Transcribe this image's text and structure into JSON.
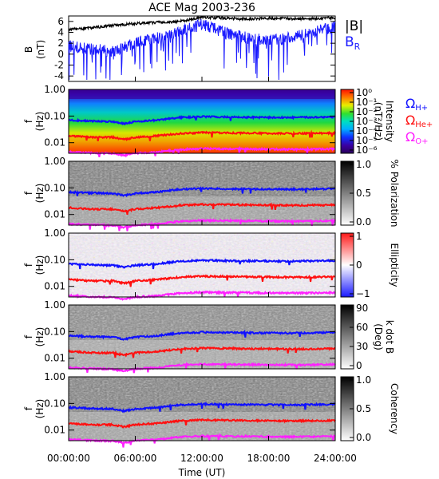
{
  "title": "ACE Mag 2003-236",
  "x_ticks": [
    "00:00:00",
    "06:00:00",
    "12:00:00",
    "18:00:00",
    "24:00:00"
  ],
  "x_label": "Time (UT)",
  "colors": {
    "h_plus": "#1010ff",
    "he_plus": "#ff1010",
    "o_plus": "#ff20ff",
    "br": "#1a1aff",
    "b_total": "#000000"
  },
  "legend": {
    "b_total": "|B|",
    "br": "B",
    "br_sub": "R",
    "h_plus": "Ω",
    "h_plus_sub": "H+",
    "he_plus": "Ω",
    "he_plus_sub": "He+",
    "o_plus": "Ω",
    "o_plus_sub": "O+"
  },
  "panel_b": {
    "ylabel_1": "B",
    "ylabel_2": "(nT)",
    "y_ticks": [
      "6",
      "4",
      "2",
      "0",
      "-2",
      "-4"
    ]
  },
  "spec_y_ticks": [
    "1.00",
    "0.10",
    "0.01"
  ],
  "spec_ylabel_1": "f",
  "spec_ylabel_2": "(Hz)",
  "colorbars": [
    {
      "label_1": "Intensity",
      "label_2": "(nT²/Hz)",
      "ticks": [
        "10⁰",
        "10⁻¹",
        "10⁻²",
        "10⁻³",
        "10⁻⁴",
        "10⁻⁵",
        "10⁻⁶"
      ]
    },
    {
      "label_1": "% Polarization",
      "label_2": "",
      "ticks": [
        "1.0",
        "0.5",
        "0.0"
      ]
    },
    {
      "label_1": "Ellipticity",
      "label_2": "",
      "ticks": [
        "1",
        "0",
        "−1"
      ]
    },
    {
      "label_1": "k dot B",
      "label_2": "(Deg)",
      "ticks": [
        "90",
        "60",
        "30",
        "0"
      ]
    },
    {
      "label_1": "Coherency",
      "label_2": "",
      "ticks": [
        "1.0",
        "0.5",
        "0.0"
      ]
    }
  ],
  "chart_data": [
    {
      "type": "line",
      "x_unit": "hours UT",
      "xlim": [
        0,
        24
      ],
      "ylim": [
        -5,
        7
      ],
      "ylabel": "B (nT)",
      "series": [
        {
          "name": "|B|",
          "x": [
            0,
            2,
            4,
            6,
            8,
            10,
            12,
            14,
            16,
            18,
            20,
            22,
            24
          ],
          "y": [
            4.5,
            4.8,
            5.3,
            5.6,
            5.8,
            6.0,
            6.8,
            6.6,
            6.4,
            6.6,
            6.5,
            6.5,
            6.7
          ]
        },
        {
          "name": "BR",
          "x": [
            0,
            2,
            4,
            6,
            8,
            10,
            12,
            14,
            16,
            18,
            20,
            22,
            24
          ],
          "y": [
            1.5,
            1.0,
            0.5,
            2.0,
            3.0,
            4.0,
            5.5,
            4.0,
            3.0,
            2.5,
            3.0,
            4.0,
            5.0
          ]
        }
      ]
    },
    {
      "type": "heatmap",
      "name": "spectrogram",
      "x_unit": "hours UT",
      "xlim": [
        0,
        24
      ],
      "y_unit": "Hz",
      "y_scale": "log",
      "ylim": [
        0.004,
        1.0
      ],
      "cyclotron_lines": [
        {
          "name": "ΩH+",
          "x": [
            0,
            2,
            4,
            5,
            6,
            8,
            10,
            12,
            16,
            20,
            24
          ],
          "y": [
            0.07,
            0.065,
            0.062,
            0.052,
            0.062,
            0.07,
            0.088,
            0.095,
            0.09,
            0.088,
            0.093
          ]
        },
        {
          "name": "ΩHe+",
          "x": [
            0,
            2,
            4,
            5,
            6,
            8,
            10,
            12,
            16,
            20,
            24
          ],
          "y": [
            0.018,
            0.016,
            0.016,
            0.013,
            0.016,
            0.018,
            0.022,
            0.024,
            0.023,
            0.022,
            0.023
          ]
        },
        {
          "name": "ΩO+",
          "x": [
            0,
            2,
            4,
            5,
            6,
            8,
            10,
            12,
            16,
            20,
            24
          ],
          "y": [
            0.0045,
            0.0041,
            0.0039,
            0.0033,
            0.004,
            0.0044,
            0.0055,
            0.006,
            0.0058,
            0.0056,
            0.0058
          ]
        }
      ]
    }
  ]
}
